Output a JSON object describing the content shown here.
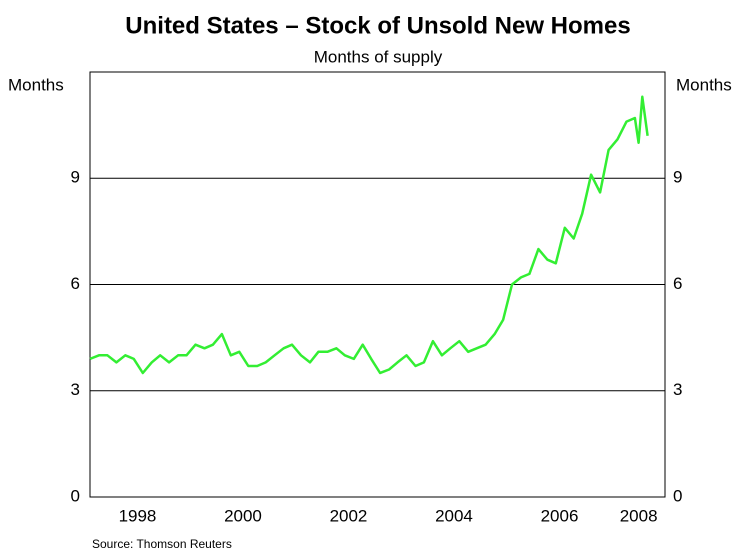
{
  "chart_data": {
    "type": "line",
    "title": "United States – Stock of Unsold New Homes",
    "subtitle": "Months of supply",
    "y_label": "Months",
    "y2_label": "Months",
    "source": "Source: Thomson Reuters",
    "xlim": [
      1997.6,
      2008.5
    ],
    "xticks": [
      {
        "value": 1998.5,
        "label": "1998"
      },
      {
        "value": 2000.5,
        "label": "2000"
      },
      {
        "value": 2002.5,
        "label": "2002"
      },
      {
        "value": 2004.5,
        "label": "2004"
      },
      {
        "value": 2006.5,
        "label": "2006"
      },
      {
        "value": 2008.0,
        "label": "2008"
      }
    ],
    "ylim": [
      0,
      12
    ],
    "yticks": [
      0,
      3,
      6,
      9
    ],
    "y2lim": [
      0,
      12
    ],
    "y2ticks": [
      0,
      3,
      6,
      9
    ],
    "grid": true,
    "x": [
      1997.6,
      1997.77,
      1997.93,
      1998.1,
      1998.27,
      1998.43,
      1998.6,
      1998.77,
      1998.93,
      1999.1,
      1999.27,
      1999.43,
      1999.6,
      1999.77,
      1999.93,
      2000.1,
      2000.27,
      2000.43,
      2000.6,
      2000.77,
      2000.93,
      2001.1,
      2001.27,
      2001.43,
      2001.6,
      2001.77,
      2001.93,
      2002.1,
      2002.27,
      2002.43,
      2002.6,
      2002.77,
      2002.93,
      2003.1,
      2003.27,
      2003.43,
      2003.6,
      2003.77,
      2003.93,
      2004.1,
      2004.27,
      2004.43,
      2004.6,
      2004.77,
      2004.93,
      2005.1,
      2005.27,
      2005.43,
      2005.6,
      2005.77,
      2005.93,
      2006.1,
      2006.27,
      2006.43,
      2006.6,
      2006.77,
      2006.93,
      2007.1,
      2007.27,
      2007.43,
      2007.6,
      2007.77,
      2007.93,
      2008.0,
      2008.07,
      2008.17
    ],
    "series": [
      {
        "name": "Months of supply",
        "color": "#33ee33",
        "values": [
          3.9,
          4.0,
          4.0,
          3.8,
          4.0,
          3.9,
          3.5,
          3.8,
          4.0,
          3.8,
          4.0,
          4.0,
          4.3,
          4.2,
          4.3,
          4.6,
          4.0,
          4.1,
          3.7,
          3.7,
          3.8,
          4.0,
          4.2,
          4.3,
          4.0,
          3.8,
          4.1,
          4.1,
          4.2,
          4.0,
          3.9,
          4.3,
          3.9,
          3.5,
          3.6,
          3.8,
          4.0,
          3.7,
          3.8,
          4.4,
          4.0,
          4.2,
          4.4,
          4.1,
          4.2,
          4.3,
          4.6,
          5.0,
          6.0,
          6.2,
          6.3,
          7.0,
          6.7,
          6.6,
          7.6,
          7.3,
          8.0,
          9.1,
          8.6,
          9.8,
          10.1,
          10.6,
          10.7,
          10.0,
          11.3,
          10.2
        ]
      }
    ]
  }
}
